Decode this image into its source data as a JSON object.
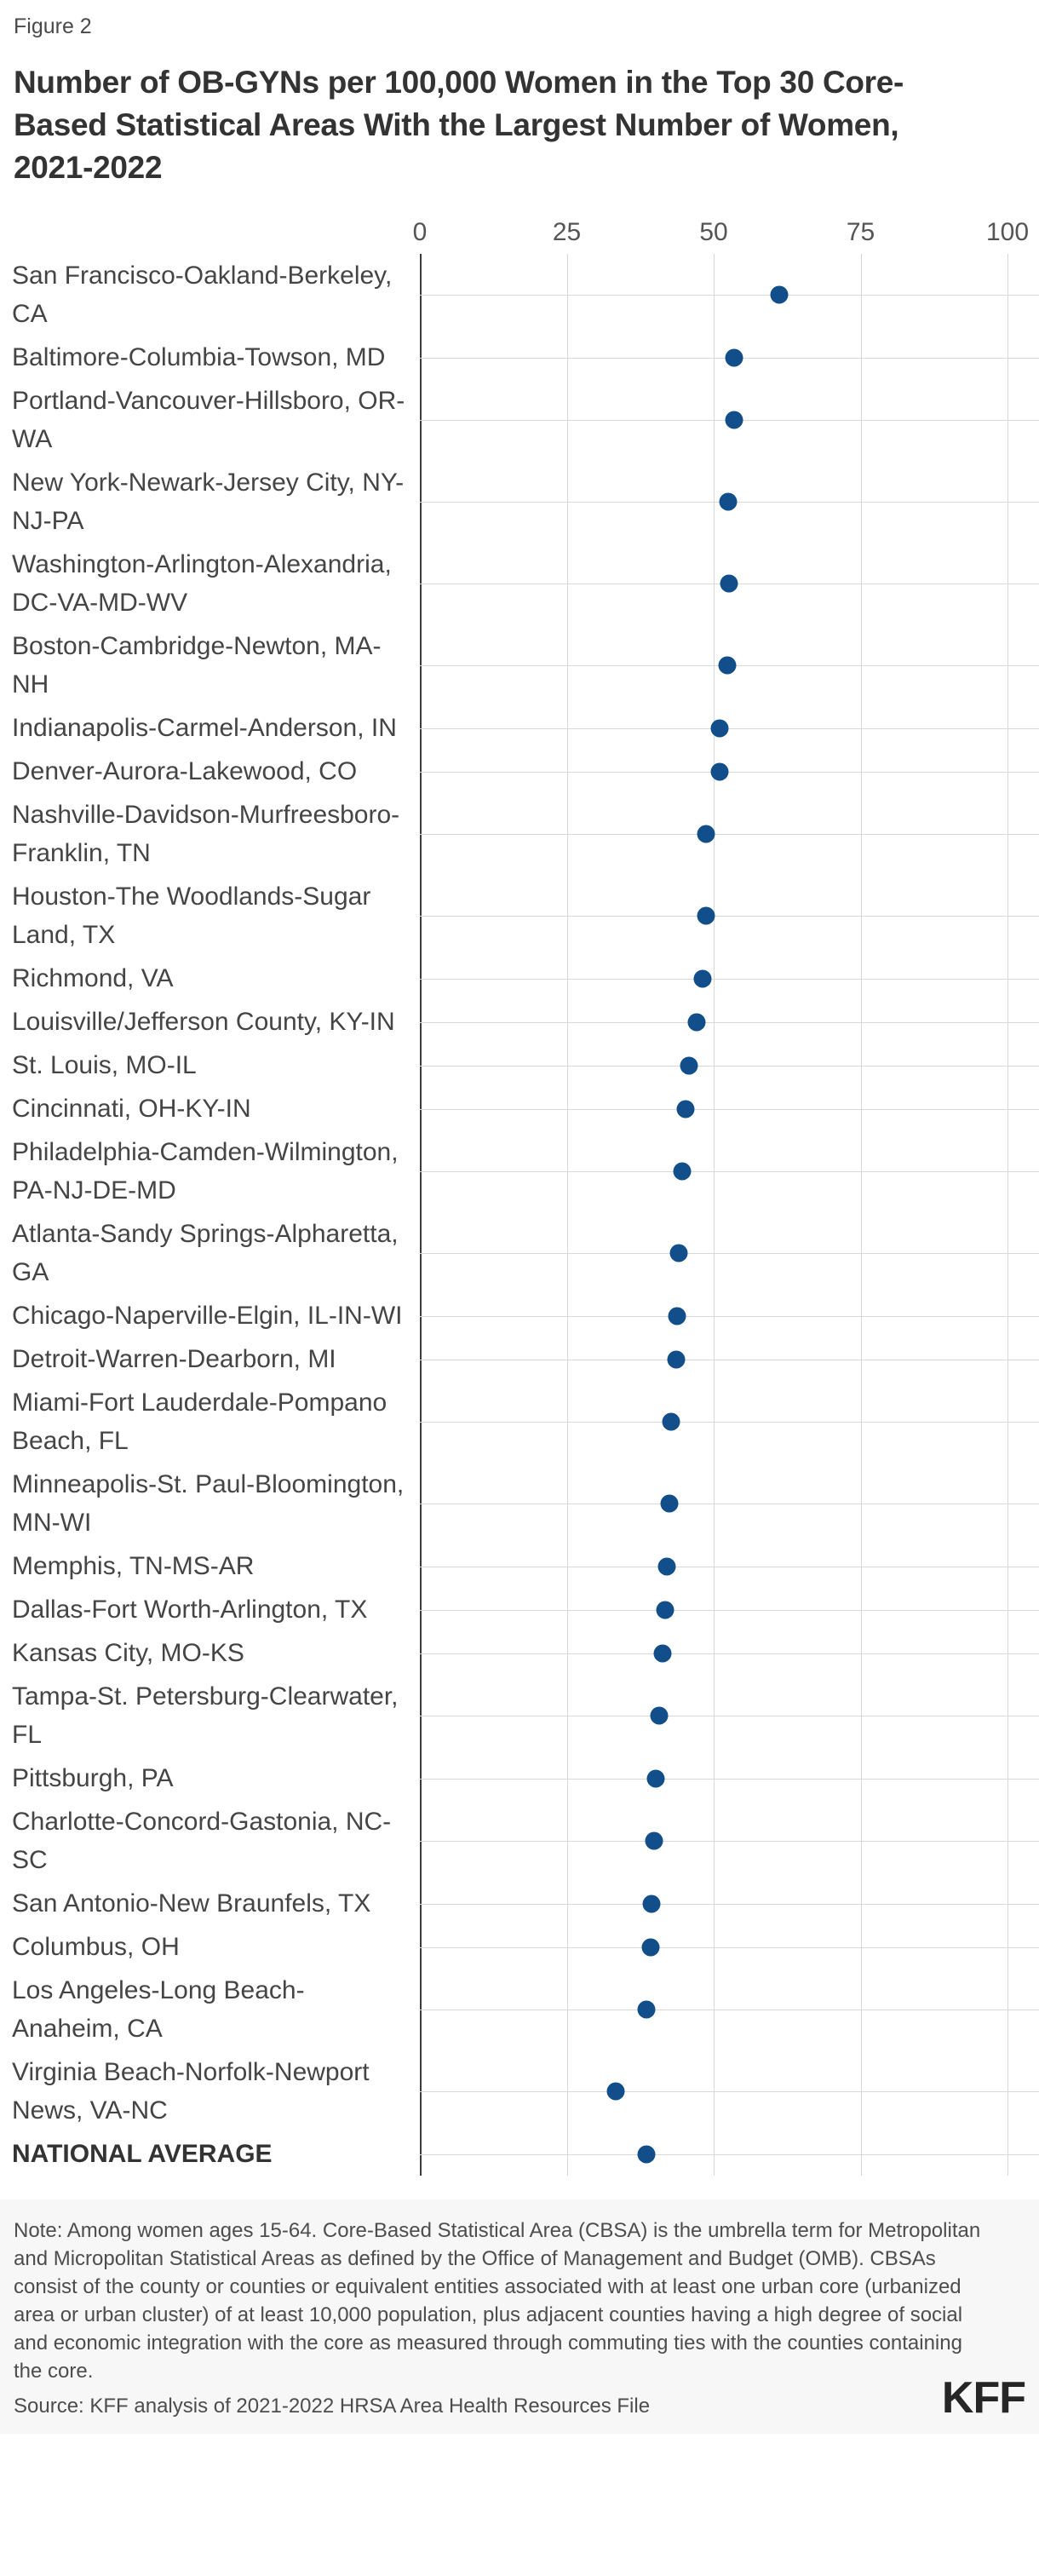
{
  "figure_label": "Figure 2",
  "title_lines": [
    "Number of OB-GYNs per 100,000 Women in the Top 30 Core-",
    "Based Statistical Areas With the Largest Number of Women,",
    "2021-2022"
  ],
  "colors": {
    "dot": "#114E8A",
    "zero_axis_line": "#3c3c3c",
    "gridline": "#d8d8d8",
    "title_text": "#333333",
    "footer_background": "#f7f7f7"
  },
  "chart_data": {
    "type": "scatter",
    "subtype": "horizontal-dot-plot",
    "title": "Number of OB-GYNs per 100,000 Women in the Top 30 Core-Based Statistical Areas With the Largest Number of Women, 2021-2022",
    "xlabel": "",
    "ylabel": "",
    "xlim": [
      0,
      100
    ],
    "x_ticks": [
      0,
      25,
      50,
      75,
      100
    ],
    "grid": "vertical gridlines at ticks plus light horizontal line per category row",
    "legend": "none",
    "rows": [
      {
        "label": "San Francisco-Oakland-Berkeley, CA",
        "value": 61.2,
        "emphasis": false
      },
      {
        "label": "Baltimore-Columbia-Towson, MD",
        "value": 53.5,
        "emphasis": false
      },
      {
        "label": "Portland-Vancouver-Hillsboro, OR-WA",
        "value": 53.5,
        "emphasis": false
      },
      {
        "label": "New York-Newark-Jersey City, NY-NJ-PA",
        "value": 52.5,
        "emphasis": false
      },
      {
        "label": "Washington-Arlington-Alexandria, DC-VA-MD-WV",
        "value": 52.6,
        "emphasis": false
      },
      {
        "label": "Boston-Cambridge-Newton, MA-NH",
        "value": 52.3,
        "emphasis": false
      },
      {
        "label": "Indianapolis-Carmel-Anderson, IN",
        "value": 51.0,
        "emphasis": false
      },
      {
        "label": "Denver-Aurora-Lakewood, CO",
        "value": 51.0,
        "emphasis": false
      },
      {
        "label": "Nashville-Davidson-Murfreesboro-Franklin, TN",
        "value": 48.7,
        "emphasis": false
      },
      {
        "label": "Houston-The Woodlands-Sugar Land, TX",
        "value": 48.7,
        "emphasis": false
      },
      {
        "label": "Richmond, VA",
        "value": 48.1,
        "emphasis": false
      },
      {
        "label": "Louisville/Jefferson County, KY-IN",
        "value": 47.1,
        "emphasis": false
      },
      {
        "label": "St. Louis, MO-IL",
        "value": 45.8,
        "emphasis": false
      },
      {
        "label": "Cincinnati, OH-KY-IN",
        "value": 45.2,
        "emphasis": false
      },
      {
        "label": "Philadelphia-Camden-Wilmington, PA-NJ-DE-MD",
        "value": 44.6,
        "emphasis": false
      },
      {
        "label": "Atlanta-Sandy Springs-Alpharetta, GA",
        "value": 44.1,
        "emphasis": false
      },
      {
        "label": "Chicago-Naperville-Elgin, IL-IN-WI",
        "value": 43.8,
        "emphasis": false
      },
      {
        "label": "Detroit-Warren-Dearborn, MI",
        "value": 43.6,
        "emphasis": false
      },
      {
        "label": "Miami-Fort Lauderdale-Pompano Beach, FL",
        "value": 42.8,
        "emphasis": false
      },
      {
        "label": "Minneapolis-St. Paul-Bloomington, MN-WI",
        "value": 42.5,
        "emphasis": false
      },
      {
        "label": "Memphis, TN-MS-AR",
        "value": 42.0,
        "emphasis": false
      },
      {
        "label": "Dallas-Fort Worth-Arlington, TX",
        "value": 41.7,
        "emphasis": false
      },
      {
        "label": "Kansas City, MO-KS",
        "value": 41.3,
        "emphasis": false
      },
      {
        "label": "Tampa-St. Petersburg-Clearwater, FL",
        "value": 40.7,
        "emphasis": false
      },
      {
        "label": "Pittsburgh, PA",
        "value": 40.1,
        "emphasis": false
      },
      {
        "label": "Charlotte-Concord-Gastonia, NC-SC",
        "value": 39.9,
        "emphasis": false
      },
      {
        "label": "San Antonio-New Braunfels, TX",
        "value": 39.4,
        "emphasis": false
      },
      {
        "label": "Columbus, OH",
        "value": 39.3,
        "emphasis": false
      },
      {
        "label": "Los Angeles-Long Beach-Anaheim, CA",
        "value": 38.6,
        "emphasis": false
      },
      {
        "label": "Virginia Beach-Norfolk-Newport News, VA-NC",
        "value": 33.3,
        "emphasis": false
      },
      {
        "label": "NATIONAL AVERAGE",
        "value": 38.6,
        "emphasis": true
      }
    ]
  },
  "footer": {
    "note": "Note: Among women ages 15-64. Core-Based Statistical Area (CBSA) is the umbrella term for Metropolitan and Micropolitan Statistical Areas as defined by the Office of Management and Budget (OMB). CBSAs consist of the county or counties or equivalent entities associated with at least one urban core (urbanized area or urban cluster) of at least 10,000 population, plus adjacent counties having a high degree of social and economic integration with the core as measured through commuting ties with the counties containing the core.",
    "source": "Source: KFF analysis of 2021-2022 HRSA Area Health Resources File",
    "logo": "KFF"
  }
}
